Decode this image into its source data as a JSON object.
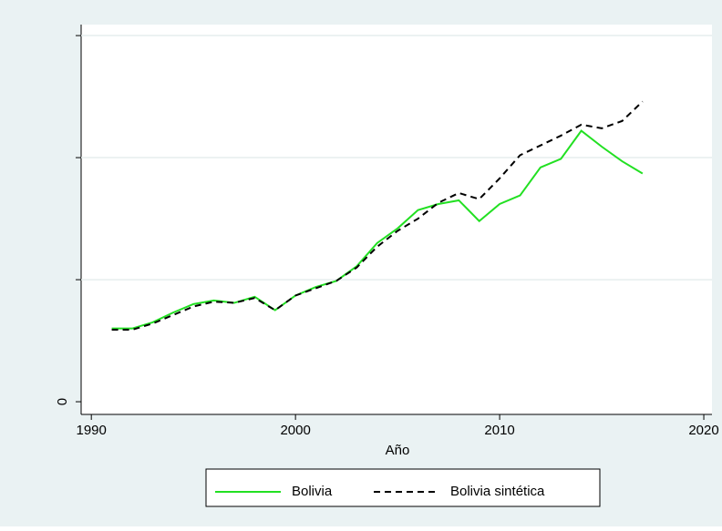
{
  "chart_data": {
    "type": "line",
    "x": [
      1991,
      1992,
      1993,
      1994,
      1995,
      1996,
      1997,
      1998,
      1999,
      2000,
      2001,
      2002,
      2003,
      2004,
      2005,
      2006,
      2007,
      2008,
      2009,
      2010,
      2011,
      2012,
      2013,
      2014,
      2015,
      2016,
      2017
    ],
    "series": [
      {
        "name": "Bolivia",
        "color": "#22e022",
        "dash": "solid",
        "values": [
          0.6,
          0.6,
          0.65,
          0.73,
          0.8,
          0.83,
          0.81,
          0.86,
          0.75,
          0.87,
          0.94,
          0.99,
          1.11,
          1.3,
          1.42,
          1.57,
          1.62,
          1.65,
          1.48,
          1.62,
          1.69,
          1.92,
          1.99,
          2.22,
          2.09,
          1.97,
          1.87
        ]
      },
      {
        "name": "Bolivia sintética",
        "color": "#000000",
        "dash": "dashed",
        "values": [
          0.59,
          0.59,
          0.64,
          0.71,
          0.78,
          0.82,
          0.81,
          0.85,
          0.75,
          0.87,
          0.93,
          0.99,
          1.1,
          1.27,
          1.4,
          1.5,
          1.63,
          1.71,
          1.66,
          1.83,
          2.02,
          2.1,
          2.18,
          2.27,
          2.24,
          2.3,
          2.46
        ]
      }
    ],
    "x_label": "Año",
    "xlim": [
      1989.5,
      2020.4
    ],
    "xticks": [
      1990,
      2000,
      2010,
      2020
    ],
    "ylim": [
      -0.104,
      3.09
    ],
    "yticks": [
      0
    ],
    "yticks_unlabeled": [
      1,
      2,
      3
    ],
    "grid": true,
    "legend": "bottom"
  }
}
